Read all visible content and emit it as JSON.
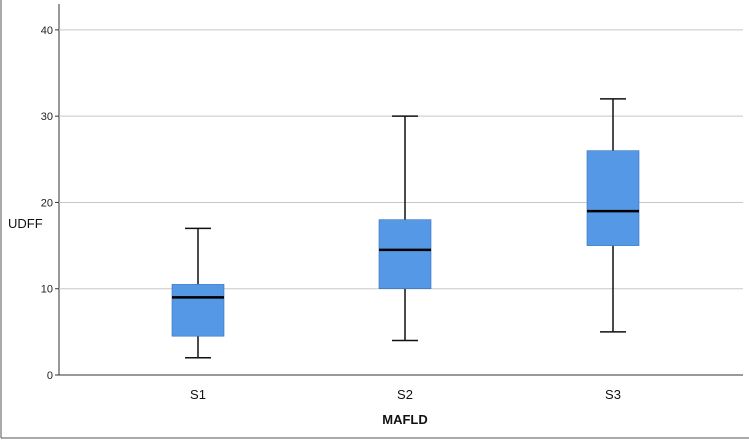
{
  "chart_data": {
    "type": "boxplot",
    "xlabel": "MAFLD",
    "ylabel": "UDFF",
    "ylim": [
      0,
      43
    ],
    "yticks": [
      0,
      10,
      20,
      30,
      40
    ],
    "grid": true,
    "box_color": "#5599e6",
    "categories": [
      "S1",
      "S2",
      "S3"
    ],
    "boxes": [
      {
        "category": "S1",
        "min": 2,
        "q1": 4.5,
        "median": 9,
        "q3": 10.5,
        "max": 17
      },
      {
        "category": "S2",
        "min": 4,
        "q1": 10,
        "median": 14.5,
        "q3": 18,
        "max": 30
      },
      {
        "category": "S3",
        "min": 5,
        "q1": 15,
        "median": 19,
        "q3": 26,
        "max": 32
      }
    ]
  }
}
